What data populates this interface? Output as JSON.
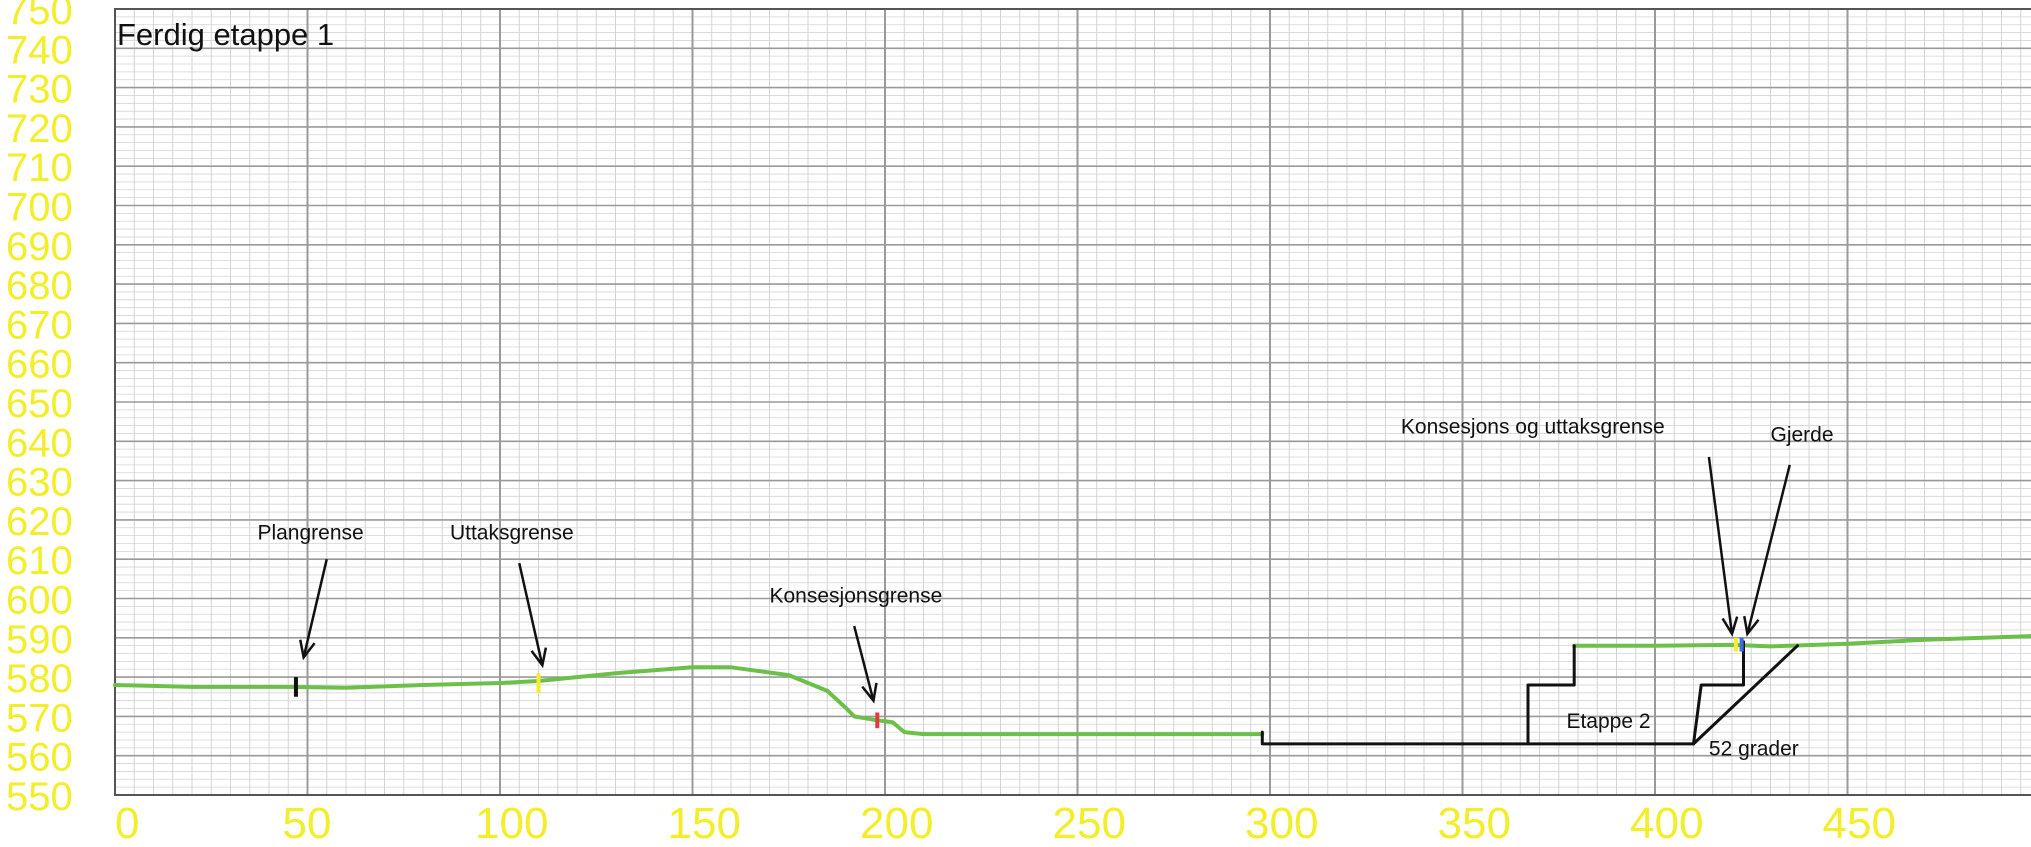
{
  "chart_data": {
    "type": "line",
    "title": "Ferdig etappe 1",
    "xlabel": "",
    "ylabel": "",
    "xlim": [
      0,
      500
    ],
    "ylim": [
      550,
      750
    ],
    "x_ticks": [
      0,
      50,
      100,
      150,
      200,
      250,
      300,
      350,
      400,
      450
    ],
    "y_ticks": [
      550,
      560,
      570,
      580,
      590,
      600,
      610,
      620,
      630,
      640,
      650,
      660,
      670,
      680,
      690,
      700,
      710,
      720,
      730,
      740,
      750
    ],
    "grid": true,
    "legend": "none",
    "series": [
      {
        "name": "",
        "color": "#6cc04a",
        "points": [
          [
            0,
            578
          ],
          [
            20,
            577.5
          ],
          [
            45,
            577.5
          ],
          [
            60,
            577.3
          ],
          [
            80,
            578
          ],
          [
            100,
            578.5
          ],
          [
            110,
            579
          ],
          [
            130,
            581
          ],
          [
            150,
            582.5
          ],
          [
            160,
            582.5
          ],
          [
            175,
            580.5
          ],
          [
            185,
            576.5
          ],
          [
            190,
            572
          ],
          [
            192,
            570
          ],
          [
            198,
            569
          ],
          [
            202,
            568.5
          ],
          [
            205,
            566
          ],
          [
            210,
            565.5
          ],
          [
            240,
            565.5
          ],
          [
            270,
            565.5
          ],
          [
            298,
            565.5
          ]
        ]
      },
      {
        "name": "",
        "color": "#6cc04a",
        "points": [
          [
            379,
            588
          ],
          [
            400,
            588
          ],
          [
            420,
            588.2
          ],
          [
            430,
            587.8
          ],
          [
            450,
            588.5
          ],
          [
            470,
            589.5
          ],
          [
            500,
            590.5
          ]
        ]
      },
      {
        "name": "",
        "color": "#111111",
        "points": [
          [
            298,
            566
          ],
          [
            298,
            563
          ],
          [
            410,
            563
          ]
        ]
      },
      {
        "name": "",
        "color": "#111111",
        "points": [
          [
            367,
            563
          ],
          [
            367,
            578
          ],
          [
            379,
            578
          ],
          [
            379,
            588
          ]
        ]
      },
      {
        "name": "",
        "color": "#111111",
        "points": [
          [
            410,
            563
          ],
          [
            412,
            578
          ],
          [
            423,
            578
          ],
          [
            423,
            589
          ]
        ]
      },
      {
        "name": "",
        "color": "#111111",
        "points": [
          [
            410,
            563
          ],
          [
            437,
            588
          ]
        ]
      }
    ],
    "markers": [
      {
        "x": 47,
        "y0": 575,
        "y1": 580,
        "color": "#111111"
      },
      {
        "x": 110,
        "y0": 576,
        "y1": 581,
        "color": "#f2ee2a"
      },
      {
        "x": 198,
        "y0": 567,
        "y1": 571,
        "color": "#e23b3b"
      },
      {
        "x": 421,
        "y0": 586.5,
        "y1": 590,
        "color": "#f2ee2a"
      },
      {
        "x": 422.5,
        "y0": 586.5,
        "y1": 590,
        "color": "#3b6fd8"
      }
    ],
    "annotations": [
      {
        "text": "Plangrense",
        "x": 37,
        "y": 615,
        "arrow_from": [
          55,
          610
        ],
        "arrow_to": [
          49,
          585
        ]
      },
      {
        "text": "Uttaksgrense",
        "x": 87,
        "y": 615,
        "arrow_from": [
          105,
          609
        ],
        "arrow_to": [
          111,
          583
        ]
      },
      {
        "text": "Konsesjonsgrense",
        "x": 170,
        "y": 599,
        "arrow_from": [
          192,
          593
        ],
        "arrow_to": [
          197,
          574
        ]
      },
      {
        "text": "Konsesjons og uttaksgrense",
        "x": 334,
        "y": 642,
        "arrow_from": [
          414,
          636
        ],
        "arrow_to": [
          420,
          591
        ]
      },
      {
        "text": "Gjerde",
        "x": 430,
        "y": 640,
        "arrow_from": [
          435,
          634
        ],
        "arrow_to": [
          424,
          591
        ]
      },
      {
        "text": "Etappe 2",
        "x": 377,
        "y": 567,
        "arrow_from": null,
        "arrow_to": null
      },
      {
        "text": "52 grader",
        "x": 414,
        "y": 560,
        "arrow_from": null,
        "arrow_to": null
      }
    ],
    "colors": {
      "tick_labels": "#f2ee2a",
      "terrain_line": "#6cc04a",
      "design_line": "#111111",
      "grid_major": "#9a9a9a",
      "grid_minor": "#d4d4d4"
    }
  }
}
